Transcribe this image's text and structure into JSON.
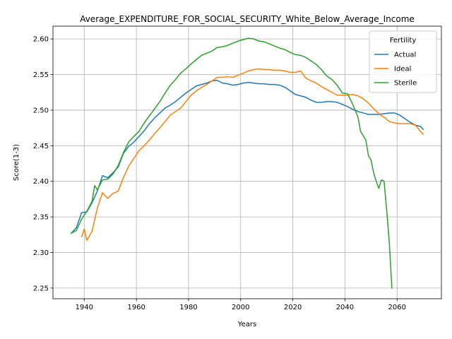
{
  "chart_data": {
    "type": "line",
    "title": "Average_EXPENDITURE_FOR_SOCIAL_SECURITY_White_Below_Average_Income",
    "xlabel": "Years",
    "ylabel": "Score(1-3)",
    "xlim": [
      1928,
      2077
    ],
    "ylim": [
      2.235,
      2.618
    ],
    "xticks": [
      1940,
      1960,
      1980,
      2000,
      2020,
      2040,
      2060
    ],
    "yticks": [
      2.25,
      2.3,
      2.35,
      2.4,
      2.45,
      2.5,
      2.55,
      2.6
    ],
    "ytick_labels": [
      "2.25",
      "2.30",
      "2.35",
      "2.40",
      "2.45",
      "2.50",
      "2.55",
      "2.60"
    ],
    "grid": true,
    "legend": {
      "title": "Fertility",
      "position": "top-right"
    },
    "series": [
      {
        "name": "Actual",
        "color": "#1f77b4",
        "x": [
          1935,
          1937,
          1939,
          1941,
          1943,
          1945,
          1947,
          1949,
          1951,
          1953,
          1955,
          1957,
          1959,
          1961,
          1963,
          1965,
          1967,
          1969,
          1971,
          1973,
          1975,
          1977,
          1979,
          1981,
          1983,
          1985,
          1987,
          1989,
          1991,
          1993,
          1995,
          1997,
          1999,
          2001,
          2003,
          2005,
          2007,
          2009,
          2011,
          2013,
          2015,
          2017,
          2019,
          2021,
          2023,
          2025,
          2027,
          2029,
          2031,
          2033,
          2035,
          2037,
          2039,
          2041,
          2043,
          2045,
          2047,
          2049,
          2051,
          2053,
          2055,
          2057,
          2059,
          2061,
          2063,
          2065,
          2067,
          2069,
          2070
        ],
        "y": [
          2.327,
          2.335,
          2.356,
          2.357,
          2.37,
          2.386,
          2.408,
          2.405,
          2.412,
          2.42,
          2.439,
          2.449,
          2.455,
          2.463,
          2.471,
          2.481,
          2.489,
          2.496,
          2.503,
          2.507,
          2.512,
          2.518,
          2.524,
          2.529,
          2.534,
          2.536,
          2.538,
          2.541,
          2.542,
          2.538,
          2.537,
          2.535,
          2.536,
          2.538,
          2.539,
          2.538,
          2.537,
          2.537,
          2.536,
          2.536,
          2.535,
          2.532,
          2.527,
          2.522,
          2.52,
          2.518,
          2.514,
          2.511,
          2.511,
          2.512,
          2.512,
          2.511,
          2.508,
          2.505,
          2.501,
          2.498,
          2.496,
          2.494,
          2.494,
          2.494,
          2.495,
          2.496,
          2.496,
          2.493,
          2.488,
          2.483,
          2.479,
          2.477,
          2.473
        ]
      },
      {
        "name": "Ideal",
        "color": "#ff7f0e",
        "x": [
          1939,
          1940,
          1941,
          1943,
          1945,
          1947,
          1949,
          1951,
          1953,
          1955,
          1957,
          1959,
          1961,
          1963,
          1965,
          1967,
          1969,
          1971,
          1973,
          1975,
          1977,
          1979,
          1981,
          1983,
          1985,
          1987,
          1989,
          1991,
          1993,
          1995,
          1997,
          1999,
          2001,
          2003,
          2005,
          2007,
          2009,
          2011,
          2013,
          2015,
          2017,
          2019,
          2021,
          2023,
          2025,
          2027,
          2029,
          2031,
          2033,
          2035,
          2037,
          2039,
          2041,
          2043,
          2045,
          2047,
          2049,
          2051,
          2053,
          2055,
          2057,
          2059,
          2061,
          2063,
          2065,
          2067,
          2069,
          2070
        ],
        "y": [
          2.322,
          2.333,
          2.317,
          2.33,
          2.362,
          2.384,
          2.376,
          2.383,
          2.386,
          2.405,
          2.421,
          2.432,
          2.443,
          2.45,
          2.458,
          2.467,
          2.475,
          2.484,
          2.493,
          2.498,
          2.503,
          2.512,
          2.521,
          2.527,
          2.532,
          2.536,
          2.541,
          2.546,
          2.546,
          2.547,
          2.546,
          2.549,
          2.552,
          2.555,
          2.557,
          2.558,
          2.557,
          2.557,
          2.556,
          2.556,
          2.555,
          2.553,
          2.553,
          2.555,
          2.545,
          2.541,
          2.538,
          2.533,
          2.529,
          2.525,
          2.521,
          2.521,
          2.521,
          2.522,
          2.52,
          2.516,
          2.51,
          2.502,
          2.495,
          2.49,
          2.484,
          2.482,
          2.481,
          2.481,
          2.481,
          2.479,
          2.47,
          2.466
        ]
      },
      {
        "name": "Sterile",
        "color": "#2ca02c",
        "x": [
          1935,
          1937,
          1939,
          1941,
          1943,
          1944,
          1945,
          1947,
          1949,
          1951,
          1953,
          1955,
          1957,
          1959,
          1961,
          1963,
          1965,
          1967,
          1969,
          1971,
          1973,
          1975,
          1977,
          1979,
          1981,
          1983,
          1985,
          1987,
          1989,
          1991,
          1993,
          1995,
          1997,
          1999,
          2001,
          2003,
          2005,
          2007,
          2009,
          2011,
          2013,
          2015,
          2017,
          2019,
          2021,
          2023,
          2025,
          2027,
          2029,
          2031,
          2033,
          2035,
          2037,
          2039,
          2041,
          2043,
          2045,
          2046,
          2048,
          2049,
          2050,
          2051,
          2052,
          2053,
          2054,
          2055,
          2056,
          2057,
          2058
        ],
        "y": [
          2.327,
          2.331,
          2.347,
          2.358,
          2.372,
          2.394,
          2.388,
          2.402,
          2.403,
          2.41,
          2.422,
          2.44,
          2.455,
          2.463,
          2.47,
          2.482,
          2.492,
          2.502,
          2.512,
          2.524,
          2.535,
          2.543,
          2.552,
          2.558,
          2.565,
          2.571,
          2.577,
          2.58,
          2.583,
          2.588,
          2.589,
          2.591,
          2.594,
          2.597,
          2.599,
          2.601,
          2.6,
          2.597,
          2.596,
          2.593,
          2.59,
          2.587,
          2.585,
          2.581,
          2.578,
          2.577,
          2.574,
          2.569,
          2.564,
          2.557,
          2.548,
          2.543,
          2.535,
          2.524,
          2.523,
          2.508,
          2.49,
          2.47,
          2.458,
          2.436,
          2.43,
          2.412,
          2.4,
          2.39,
          2.402,
          2.4,
          2.36,
          2.315,
          2.25
        ]
      }
    ]
  }
}
